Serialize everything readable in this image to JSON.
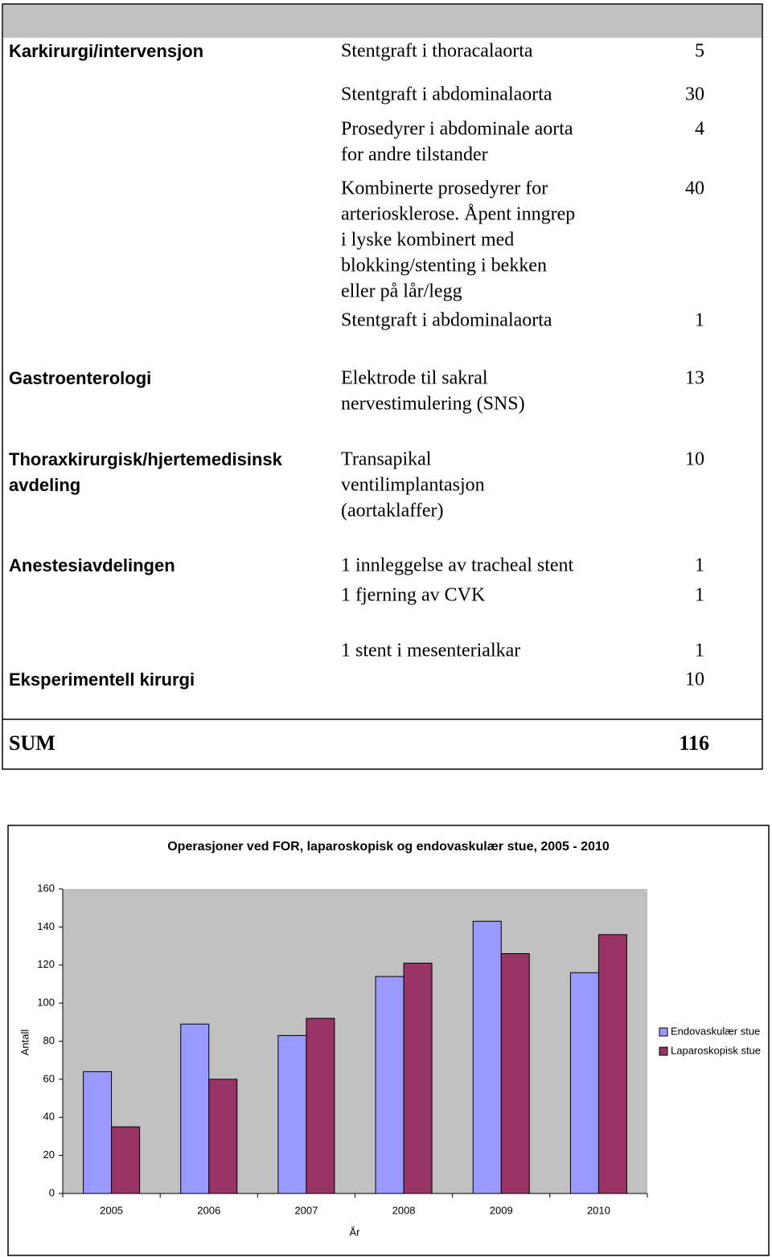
{
  "table": {
    "rows": [
      {
        "department": [
          "Karkirurgi/intervensjon"
        ],
        "procedure": [
          "Stentgraft i thoracalaorta"
        ],
        "count": 5
      },
      {
        "procedure": [
          "Stentgraft i abdominalaorta"
        ],
        "count": 30
      },
      {
        "procedure": [
          "Prosedyrer i abdominale aorta",
          "for andre tilstander"
        ],
        "count": 4
      },
      {
        "procedure": [
          "Kombinerte prosedyrer for",
          "arteriosklerose. Åpent inngrep",
          "i lyske kombinert med",
          "blokking/stenting i bekken",
          "eller på lår/legg"
        ],
        "count": 40
      },
      {
        "procedure": [
          "Stentgraft i abdominalaorta"
        ],
        "count": 1
      },
      {
        "department": [
          "Gastroenterologi"
        ],
        "procedure": [
          "Elektrode til sakral",
          "nervestimulering (SNS)"
        ],
        "count": 13
      },
      {
        "department": [
          "Thoraxkirurgisk/hjertemedisinsk",
          "avdeling"
        ],
        "procedure": [
          "Transapikal",
          "ventilimplantasjon",
          "(aortaklaffer)"
        ],
        "count": 10
      },
      {
        "department": [
          "Anestesiavdelingen"
        ],
        "procedure": [
          "1 innleggelse av tracheal stent"
        ],
        "count": 1
      },
      {
        "procedure": [
          "1 fjerning av CVK"
        ],
        "count": 1
      },
      {
        "procedure": [
          "1 stent i mesenterialkar"
        ],
        "count": 1
      },
      {
        "department": [
          "Eksperimentell kirurgi"
        ],
        "count": 10
      }
    ],
    "sum": {
      "label": "SUM",
      "count": 116
    }
  },
  "chart_data": {
    "type": "bar",
    "title": "Operasjoner ved FOR, laparoskopisk og endovaskulær stue, 2005 - 2010",
    "x_label": "År",
    "y_label": "Antall",
    "categories": [
      "2005",
      "2006",
      "2007",
      "2008",
      "2009",
      "2010"
    ],
    "series": [
      {
        "name": "Endovaskulær stue",
        "color": "#9999ff",
        "values": [
          64,
          89,
          83,
          114,
          143,
          116
        ]
      },
      {
        "name": "Laparoskopisk stue",
        "color": "#993366",
        "values": [
          35,
          60,
          92,
          121,
          126,
          136
        ]
      }
    ],
    "ylim": [
      0,
      160
    ],
    "yticks": [
      0,
      20,
      40,
      60,
      80,
      100,
      120,
      140,
      160
    ],
    "legend": "right",
    "plot_background": "#c0c0c0"
  }
}
